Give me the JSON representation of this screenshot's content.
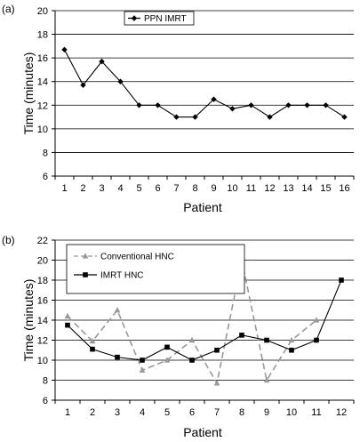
{
  "chart_data": [
    {
      "type": "line",
      "panel_label": "(a)",
      "xlabel": "Patient",
      "ylabel": "Time (minutes)",
      "x": [
        1,
        2,
        3,
        4,
        5,
        6,
        7,
        8,
        9,
        10,
        11,
        12,
        13,
        14,
        15,
        16
      ],
      "ylim": [
        6,
        20
      ],
      "yticks": [
        6,
        8,
        10,
        12,
        14,
        16,
        18,
        20
      ],
      "grid": "horizontal",
      "legend_position": "top-center",
      "series": [
        {
          "name": "PPN IMRT",
          "color": "#000000",
          "dash": "solid",
          "marker": "diamond",
          "values": [
            16.7,
            13.7,
            15.7,
            14,
            12,
            12,
            11,
            11,
            12.5,
            11.7,
            12,
            11,
            12,
            12,
            12,
            11
          ]
        }
      ]
    },
    {
      "type": "line",
      "panel_label": "(b)",
      "xlabel": "Patient",
      "ylabel": "Time (minutes)",
      "x": [
        1,
        2,
        3,
        4,
        5,
        6,
        7,
        8,
        9,
        10,
        11,
        12
      ],
      "ylim": [
        6,
        22
      ],
      "yticks": [
        6,
        8,
        10,
        12,
        14,
        16,
        18,
        20,
        22
      ],
      "grid": "horizontal",
      "legend_position": "top-left",
      "series": [
        {
          "name": "Conventional HNC",
          "color": "#999999",
          "dash": "dashed",
          "marker": "triangle",
          "values": [
            14.4,
            11.9,
            15,
            9,
            10,
            12,
            7.7,
            20,
            8,
            12,
            14,
            null
          ]
        },
        {
          "name": "IMRT HNC",
          "color": "#000000",
          "dash": "solid",
          "marker": "square",
          "values": [
            13.5,
            11.1,
            10.3,
            10,
            11.3,
            10,
            11,
            12.5,
            12,
            11,
            12,
            18
          ]
        }
      ]
    }
  ]
}
